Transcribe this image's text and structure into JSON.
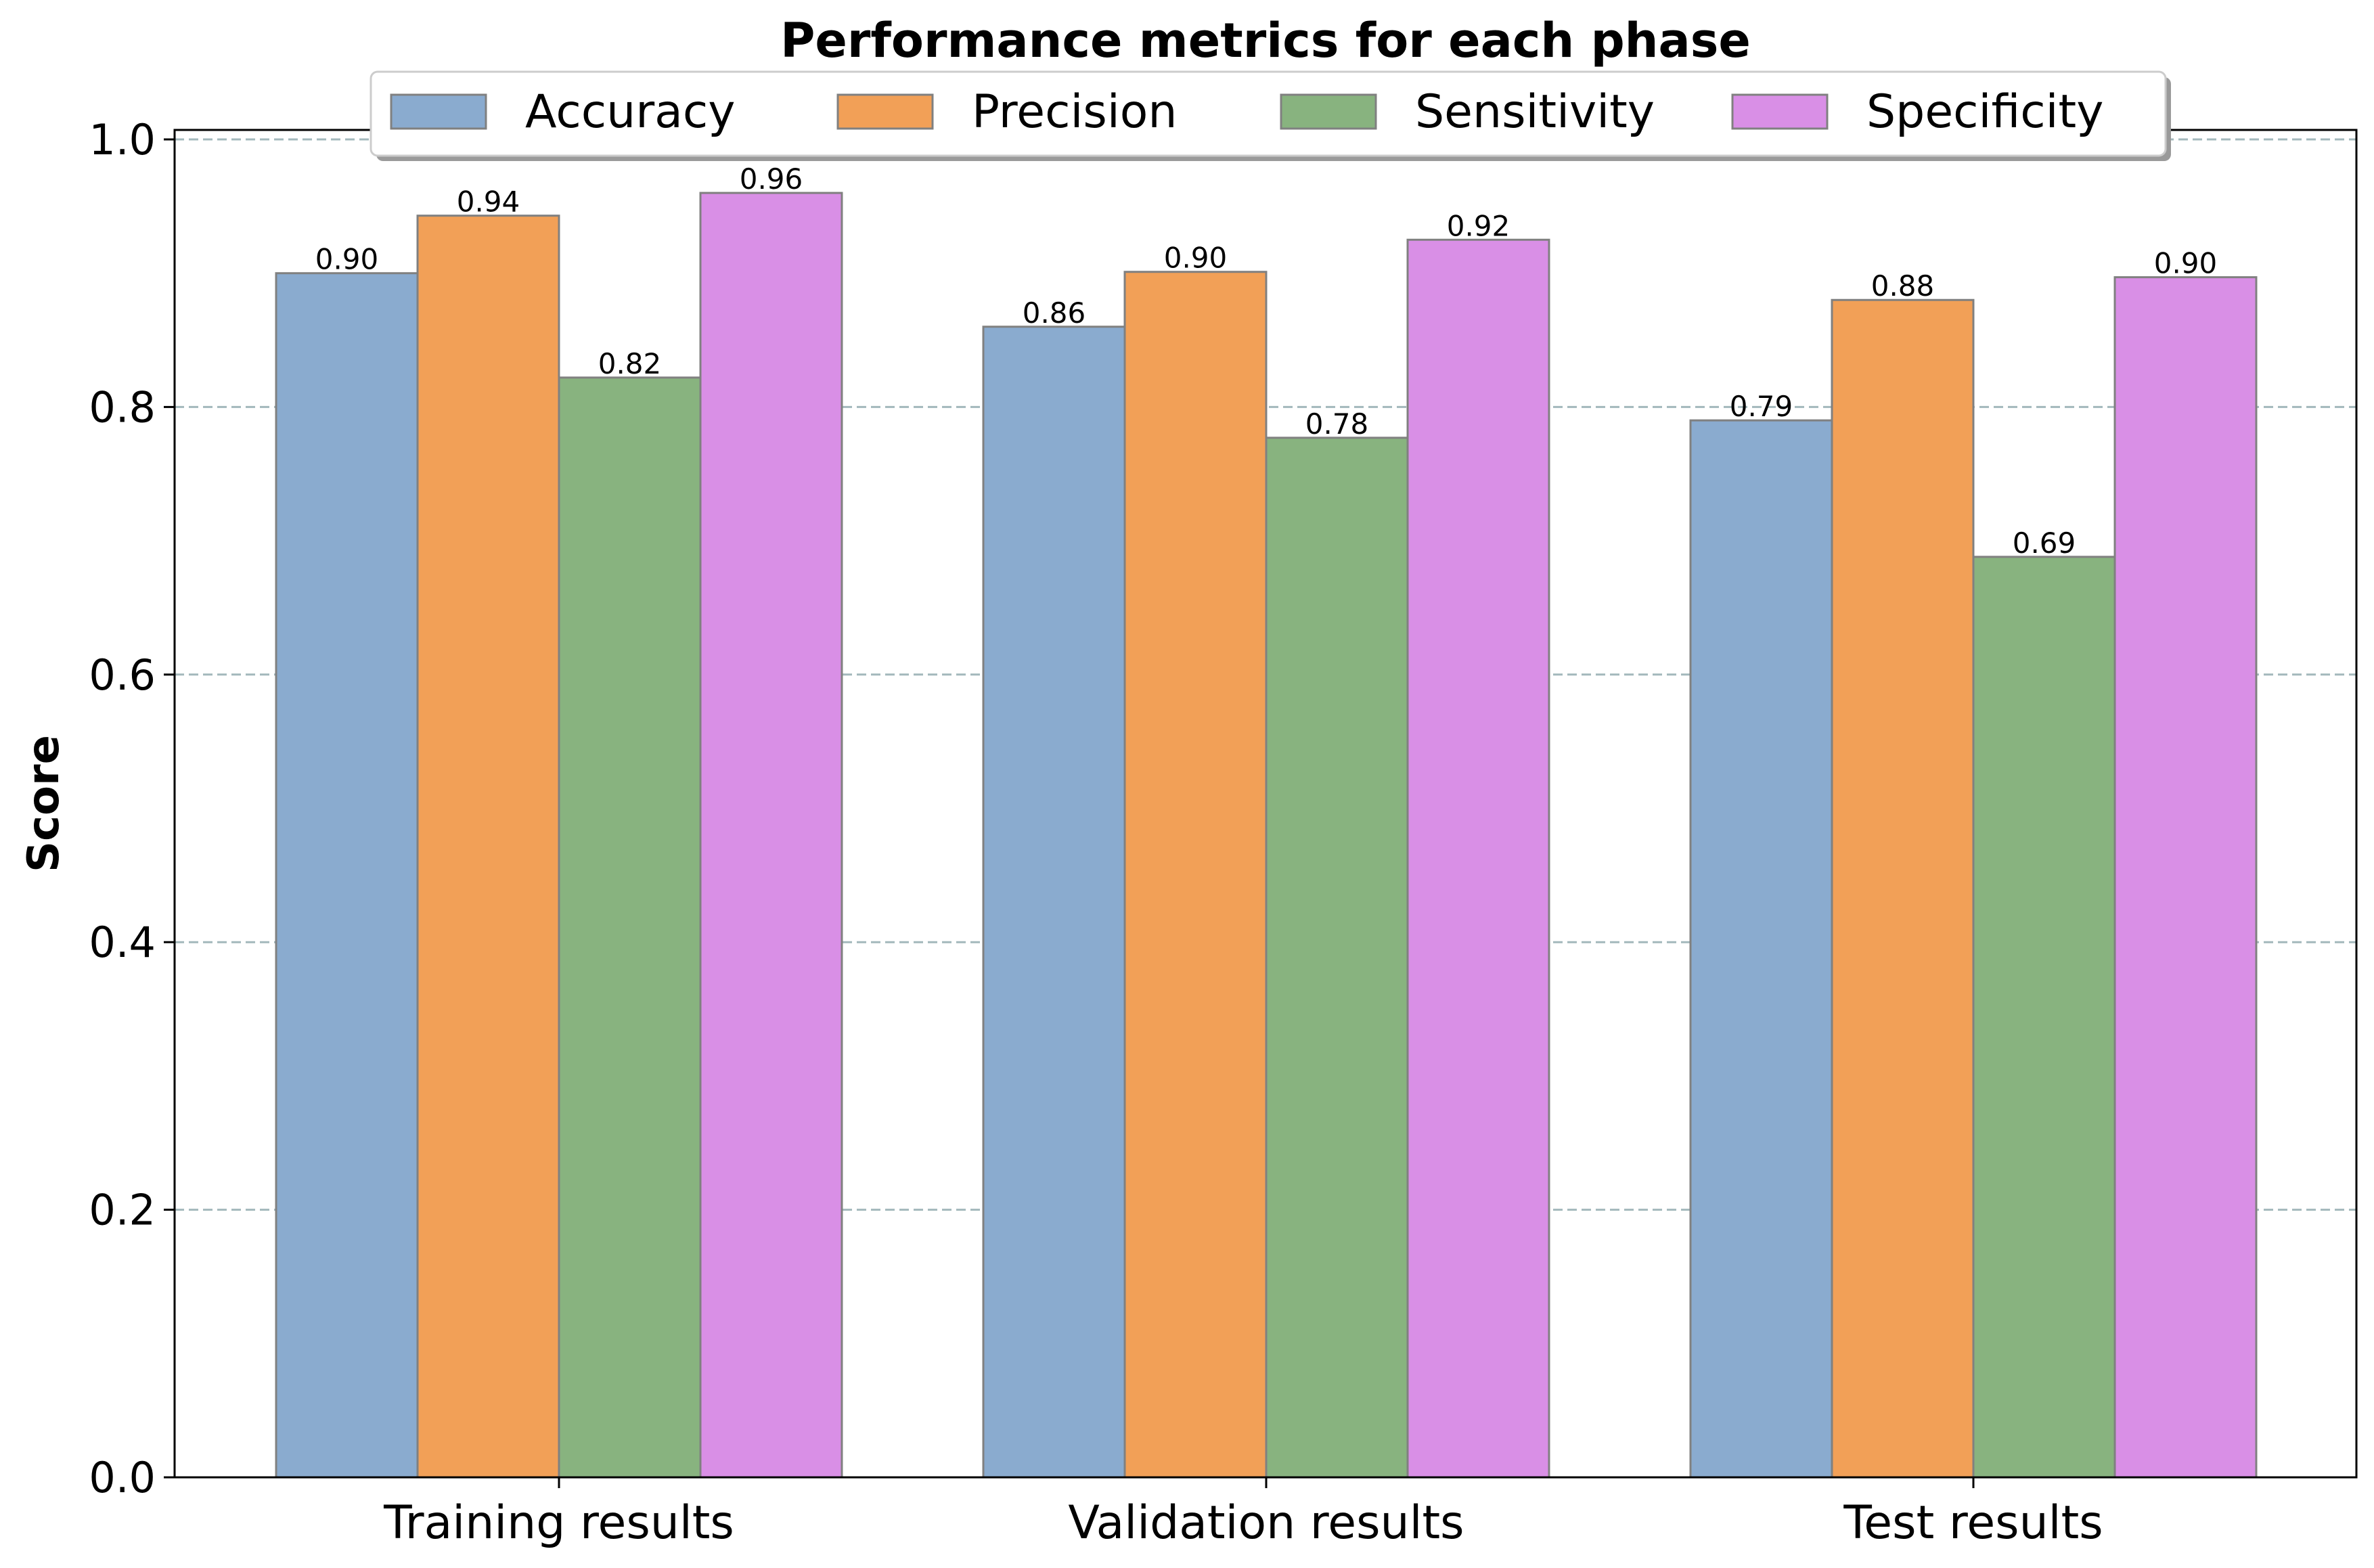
{
  "chart_data": {
    "type": "bar",
    "title": "Performance metrics for each phase",
    "xlabel": "",
    "ylabel": "Score",
    "categories": [
      "Training results",
      "Validation results",
      "Test results"
    ],
    "series": [
      {
        "name": "Accuracy",
        "values": [
          0.9,
          0.86,
          0.79
        ],
        "labels": [
          "0.90",
          "0.86",
          "0.79"
        ],
        "color": "#8aabcf"
      },
      {
        "name": "Precision",
        "values": [
          0.943,
          0.901,
          0.88
        ],
        "labels": [
          "0.94",
          "0.90",
          "0.88"
        ],
        "color": "#f2a057"
      },
      {
        "name": "Sensitivity",
        "values": [
          0.822,
          0.777,
          0.688
        ],
        "labels": [
          "0.82",
          "0.78",
          "0.69"
        ],
        "color": "#88b37f"
      },
      {
        "name": "Specificity",
        "values": [
          0.96,
          0.925,
          0.897
        ],
        "labels": [
          "0.96",
          "0.92",
          "0.90"
        ],
        "color": "#d98fe6"
      }
    ],
    "ylim": [
      0,
      1.0
    ],
    "yticks": [
      "0.0",
      "0.2",
      "0.4",
      "0.6",
      "0.8",
      "1.0"
    ],
    "grid": "y dashed",
    "legend_position": "top-center",
    "bar_edge_color": "#808080",
    "grid_color": "#a3b8bc"
  }
}
